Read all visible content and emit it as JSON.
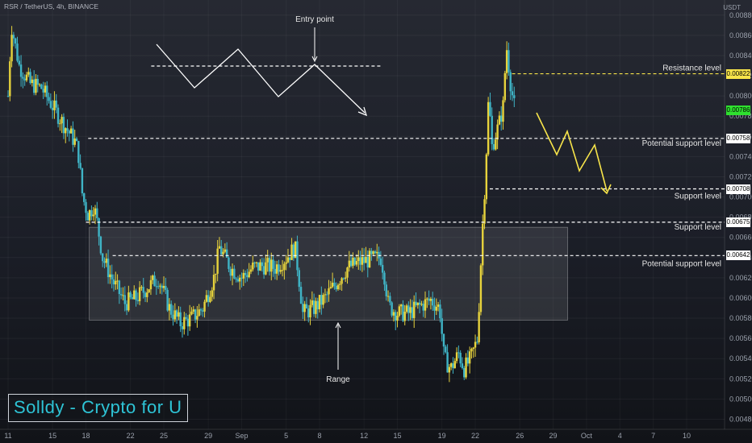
{
  "header": {
    "symbol_line": "RSR / TetherUS, 4h, BINANCE",
    "unit": "USDT"
  },
  "brand": {
    "text": "Solldy - Crypto for U"
  },
  "chart_data": {
    "type": "candlestick",
    "symbol": "RSR / TetherUS",
    "interval": "4h",
    "exchange": "BINANCE",
    "y_axis": {
      "min": 0.0047,
      "max": 0.00895,
      "unit": "USDT",
      "ticks": [
        "0.00880",
        "0.00860",
        "0.00840",
        "0.00820",
        "0.00800",
        "0.00780",
        "0.00760",
        "0.00740",
        "0.00720",
        "0.00700",
        "0.00680",
        "0.00660",
        "0.00640",
        "0.00620",
        "0.00600",
        "0.00580",
        "0.00560",
        "0.00540",
        "0.00520",
        "0.00500",
        "0.00480"
      ]
    },
    "x_axis": {
      "ticks": [
        {
          "label": "11",
          "t": 0
        },
        {
          "label": "15",
          "t": 4
        },
        {
          "label": "18",
          "t": 7
        },
        {
          "label": "22",
          "t": 11
        },
        {
          "label": "25",
          "t": 14
        },
        {
          "label": "29",
          "t": 18
        },
        {
          "label": "Sep",
          "t": 21
        },
        {
          "label": "5",
          "t": 25
        },
        {
          "label": "8",
          "t": 28
        },
        {
          "label": "12",
          "t": 32
        },
        {
          "label": "15",
          "t": 35
        },
        {
          "label": "19",
          "t": 39
        },
        {
          "label": "22",
          "t": 42
        },
        {
          "label": "26",
          "t": 46
        },
        {
          "label": "29",
          "t": 49
        },
        {
          "label": "Oct",
          "t": 52
        },
        {
          "label": "4",
          "t": 55
        },
        {
          "label": "7",
          "t": 58
        },
        {
          "label": "10",
          "t": 61
        }
      ],
      "t_max": 63.5
    },
    "price_path": [
      [
        0.0,
        0.008
      ],
      [
        0.3,
        0.0087
      ],
      [
        1.0,
        0.0083
      ],
      [
        2.0,
        0.00812
      ],
      [
        3.0,
        0.00808
      ],
      [
        4.0,
        0.0079
      ],
      [
        5.0,
        0.00772
      ],
      [
        6.0,
        0.00755
      ],
      [
        6.3,
        0.00745
      ],
      [
        6.7,
        0.007
      ],
      [
        7.2,
        0.00682
      ],
      [
        7.7,
        0.00692
      ],
      [
        8.0,
        0.00675
      ],
      [
        8.5,
        0.0064
      ],
      [
        9.5,
        0.00615
      ],
      [
        10.5,
        0.00595
      ],
      [
        11.5,
        0.006
      ],
      [
        12.5,
        0.0061
      ],
      [
        13.5,
        0.0062
      ],
      [
        14.5,
        0.0059
      ],
      [
        15.5,
        0.00575
      ],
      [
        16.5,
        0.0058
      ],
      [
        17.5,
        0.0059
      ],
      [
        18.5,
        0.0062
      ],
      [
        19.0,
        0.0065
      ],
      [
        19.5,
        0.0064
      ],
      [
        20.0,
        0.0063
      ],
      [
        21.0,
        0.0062
      ],
      [
        22.0,
        0.0063
      ],
      [
        23.0,
        0.00632
      ],
      [
        24.0,
        0.0063
      ],
      [
        25.0,
        0.0064
      ],
      [
        25.8,
        0.0065
      ],
      [
        26.2,
        0.00615
      ],
      [
        26.5,
        0.00585
      ],
      [
        27.5,
        0.0059
      ],
      [
        28.5,
        0.006
      ],
      [
        29.5,
        0.00615
      ],
      [
        30.5,
        0.0063
      ],
      [
        31.5,
        0.00635
      ],
      [
        32.5,
        0.00638
      ],
      [
        33.5,
        0.0064
      ],
      [
        33.8,
        0.00625
      ],
      [
        34.2,
        0.00592
      ],
      [
        35.0,
        0.00585
      ],
      [
        36.0,
        0.00585
      ],
      [
        37.0,
        0.00592
      ],
      [
        38.0,
        0.00598
      ],
      [
        38.8,
        0.0059
      ],
      [
        39.2,
        0.0054
      ],
      [
        39.8,
        0.0053
      ],
      [
        40.5,
        0.00545
      ],
      [
        41.0,
        0.0053
      ],
      [
        41.6,
        0.0054
      ],
      [
        42.2,
        0.0056
      ],
      [
        42.6,
        0.0066
      ],
      [
        42.9,
        0.0072
      ],
      [
        43.2,
        0.008
      ],
      [
        43.5,
        0.0075
      ],
      [
        43.8,
        0.0076
      ],
      [
        44.2,
        0.00775
      ],
      [
        44.5,
        0.0079
      ],
      [
        44.8,
        0.0085
      ],
      [
        45.2,
        0.0081
      ],
      [
        45.5,
        0.0079
      ]
    ],
    "price_labels": [
      {
        "value": "0.00822",
        "color": "#f7e44a",
        "text_color": "#000000"
      },
      {
        "value": "0.00786",
        "color": "#2fe02f",
        "text_color": "#000000"
      },
      {
        "value": "0.00758",
        "color": "#ffffff",
        "text_color": "#000000"
      },
      {
        "value": "0.00708",
        "color": "#ffffff",
        "text_color": "#000000"
      },
      {
        "value": "0.00675",
        "color": "#ffffff",
        "text_color": "#000000"
      },
      {
        "value": "0.00642",
        "color": "#ffffff",
        "text_color": "#000000"
      }
    ],
    "levels": [
      {
        "label": "Resistance level",
        "price": 0.00822,
        "color": "#f7e44a"
      },
      {
        "label": "Potential support level",
        "price": 0.00758,
        "color": "#ffffff"
      },
      {
        "label": "Support level",
        "price": 0.00708,
        "color": "#ffffff"
      },
      {
        "label": "Support level",
        "price": 0.00675,
        "color": "#ffffff"
      },
      {
        "label": "Potential support level",
        "price": 0.00642,
        "color": "#ffffff"
      }
    ],
    "range_box": {
      "t_start": 7.3,
      "t_end": 50.3,
      "price_top": 0.0067,
      "price_bottom": 0.00578
    },
    "annotations": [
      {
        "text": "Entry point"
      },
      {
        "text": "Range"
      }
    ],
    "colors": {
      "up": "#e7d33c",
      "down": "#3fb4c6",
      "arrow_path": "#f7e44a",
      "background": "#1b1e27"
    }
  }
}
